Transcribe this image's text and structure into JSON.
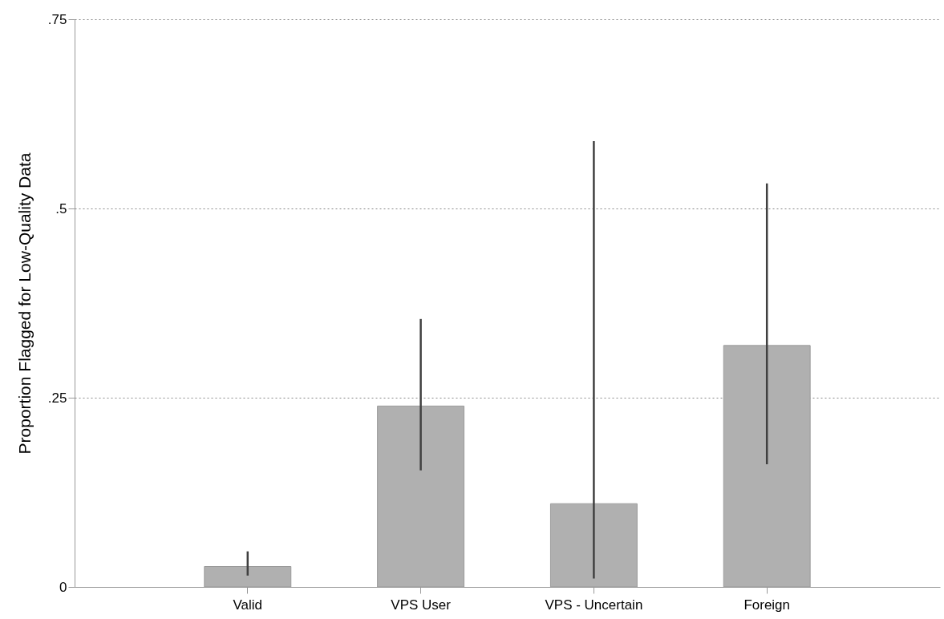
{
  "chart_data": {
    "type": "bar",
    "ylabel": "Proportion Flagged for Low-Quality Data",
    "categories": [
      "Valid",
      "VPS User",
      "VPS - Uncertain",
      "Foreign"
    ],
    "values": [
      0.027,
      0.239,
      0.11,
      0.319
    ],
    "errors": [
      [
        0.015,
        0.047
      ],
      [
        0.154,
        0.354
      ],
      [
        0.011,
        0.589
      ],
      [
        0.162,
        0.533
      ]
    ],
    "color": "#b0b0b0",
    "ylim": [
      0,
      0.75
    ],
    "yticks": [
      0,
      {
        "value": 0.25,
        "label": ".25"
      },
      {
        "value": 0.5,
        "label": ".5"
      },
      {
        "value": 0.75,
        "label": ".75"
      }
    ],
    "grid": "y"
  }
}
